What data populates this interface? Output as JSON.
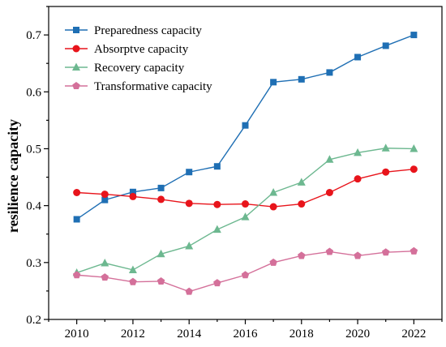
{
  "chart_data": {
    "type": "line",
    "title": "",
    "xlabel": "",
    "ylabel": "resilience capacity",
    "xlim": [
      2009,
      2023
    ],
    "ylim": [
      0.2,
      0.75
    ],
    "x": [
      2010,
      2011,
      2012,
      2013,
      2014,
      2015,
      2016,
      2017,
      2018,
      2019,
      2020,
      2021,
      2022
    ],
    "xticks": [
      2010,
      2012,
      2014,
      2016,
      2018,
      2020,
      2022
    ],
    "yticks": [
      0.2,
      0.3,
      0.4,
      0.5,
      0.6,
      0.7
    ],
    "grid": false,
    "legend_position": "top-left",
    "series": [
      {
        "name": "Preparedness capacity",
        "color": "#1f6fb4",
        "marker": "square",
        "values": [
          0.376,
          0.41,
          0.424,
          0.431,
          0.459,
          0.469,
          0.541,
          0.617,
          0.622,
          0.634,
          0.661,
          0.681,
          0.7
        ]
      },
      {
        "name": "Absorptve capacity",
        "color": "#e8141b",
        "marker": "circle",
        "values": [
          0.423,
          0.42,
          0.416,
          0.411,
          0.404,
          0.402,
          0.403,
          0.398,
          0.403,
          0.423,
          0.447,
          0.459,
          0.464
        ]
      },
      {
        "name": "Recovery capacity",
        "color": "#6db890",
        "marker": "triangle",
        "values": [
          0.282,
          0.299,
          0.287,
          0.315,
          0.329,
          0.358,
          0.38,
          0.423,
          0.441,
          0.481,
          0.493,
          0.501,
          0.5
        ]
      },
      {
        "name": "Transformative capacity",
        "color": "#d4709a",
        "marker": "pentagon",
        "values": [
          0.278,
          0.274,
          0.266,
          0.267,
          0.249,
          0.264,
          0.278,
          0.3,
          0.312,
          0.319,
          0.312,
          0.318,
          0.32
        ]
      }
    ]
  }
}
